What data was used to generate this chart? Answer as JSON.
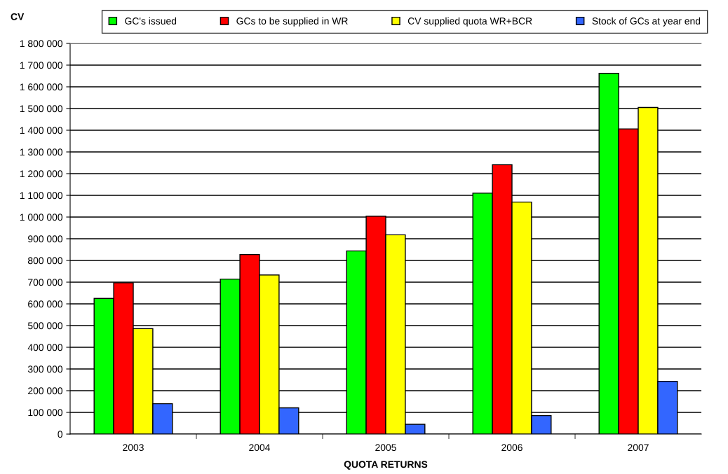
{
  "chart_data": {
    "type": "bar",
    "ylabel": "CV",
    "xlabel": "QUOTA RETURNS",
    "categories": [
      "2003",
      "2004",
      "2005",
      "2006",
      "2007"
    ],
    "series": [
      {
        "name": "GC's issued",
        "color": "#00ff00",
        "values": [
          625000,
          714000,
          844000,
          1110000,
          1662000
        ]
      },
      {
        "name": "GCs to be supplied in WR",
        "color": "#ff0000",
        "values": [
          697000,
          827000,
          1004000,
          1241000,
          1406000
        ]
      },
      {
        "name": "CV supplied quota WR+BCR",
        "color": "#ffff00",
        "values": [
          486000,
          733000,
          918000,
          1069000,
          1505000
        ]
      },
      {
        "name": "Stock of GCs at year end",
        "color": "#3366ff",
        "values": [
          140000,
          121000,
          45000,
          85000,
          243000
        ]
      }
    ],
    "ylim": [
      0,
      1800000
    ],
    "yticks": [
      {
        "value": 0,
        "label": "0"
      },
      {
        "value": 100000,
        "label": "100 000"
      },
      {
        "value": 200000,
        "label": "200 000"
      },
      {
        "value": 300000,
        "label": "300 000"
      },
      {
        "value": 400000,
        "label": "400 000"
      },
      {
        "value": 500000,
        "label": "500 000"
      },
      {
        "value": 600000,
        "label": "600 000"
      },
      {
        "value": 700000,
        "label": "700 000"
      },
      {
        "value": 800000,
        "label": "800 000"
      },
      {
        "value": 900000,
        "label": "900 000"
      },
      {
        "value": 1000000,
        "label": "1 000 000"
      },
      {
        "value": 1100000,
        "label": "1 100 000"
      },
      {
        "value": 1200000,
        "label": "1 200 000"
      },
      {
        "value": 1300000,
        "label": "1 300 000"
      },
      {
        "value": 1400000,
        "label": "1 400 000"
      },
      {
        "value": 1500000,
        "label": "1 500 000"
      },
      {
        "value": 1600000,
        "label": "1 600 000"
      },
      {
        "value": 1700000,
        "label": "1 700 000"
      },
      {
        "value": 1800000,
        "label": "1 800 000"
      }
    ],
    "grid": "y",
    "legend": "top"
  }
}
